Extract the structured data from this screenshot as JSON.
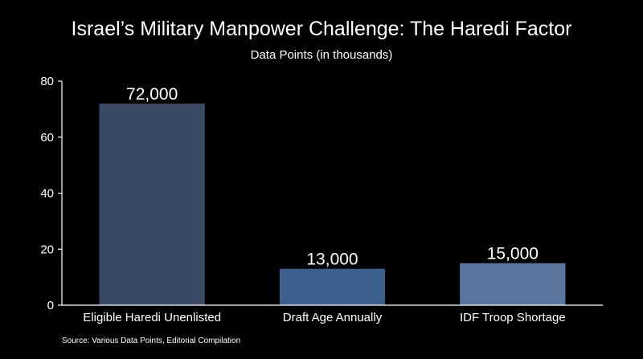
{
  "chart_data": {
    "type": "bar",
    "title": "Israel’s Military Manpower Challenge: The Haredi Factor",
    "subtitle": "Data Points (in thousands)",
    "xlabel": "",
    "ylabel": "",
    "ylim": [
      0,
      80
    ],
    "yticks": [
      0,
      20,
      40,
      60,
      80
    ],
    "grid": false,
    "categories": [
      "Eligible Haredi Unenlisted",
      "Draft Age Annually",
      "IDF Troop Shortage"
    ],
    "values": [
      72,
      13,
      15
    ],
    "data_labels": [
      "72,000",
      "13,000",
      "15,000"
    ],
    "colors": [
      "#3a4a64",
      "#3d5f8c",
      "#5a769e"
    ],
    "source": "Source: Various Data Points, Editorial Compilation"
  }
}
